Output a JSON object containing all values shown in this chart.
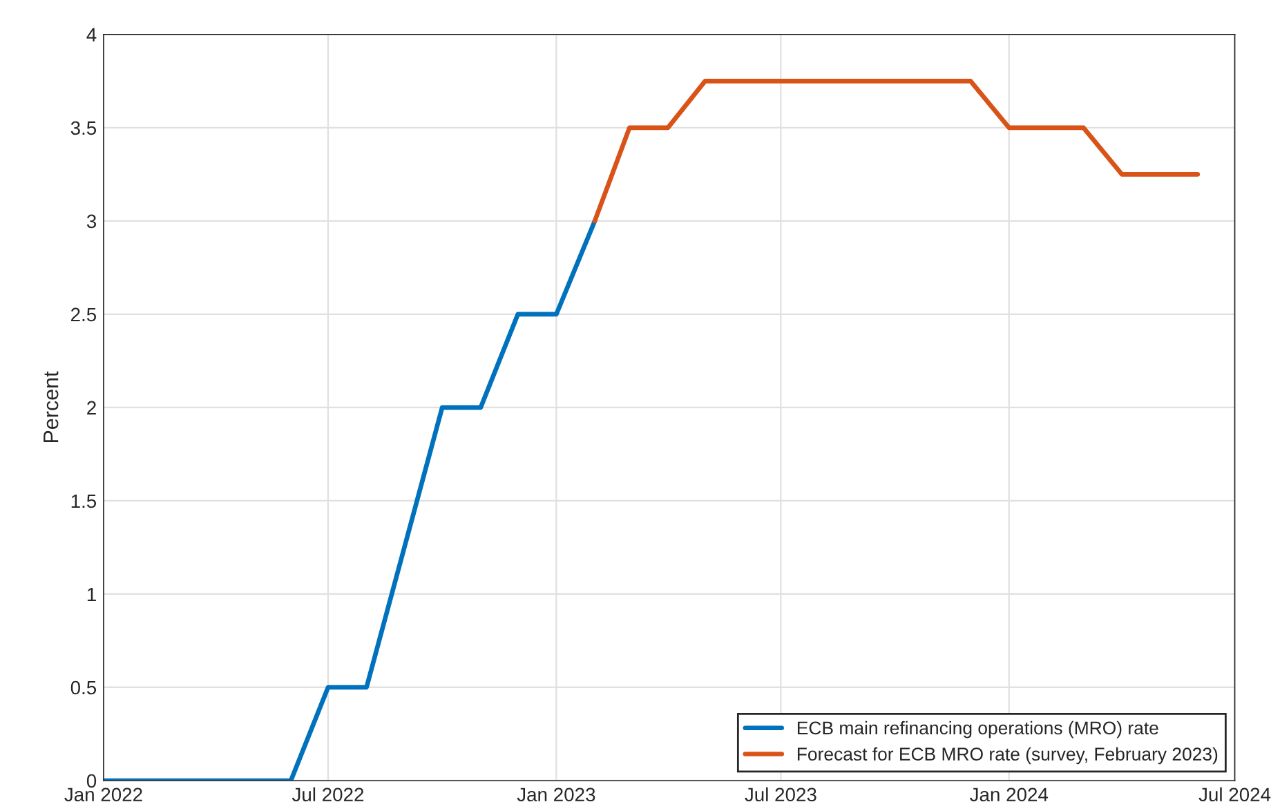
{
  "chart_data": {
    "type": "line",
    "ylabel": "Percent",
    "series": [
      {
        "name": "ECB main refinancing operations (MRO) rate",
        "color": "#0072bd",
        "x": [
          "2022-01-01",
          "2022-06-01",
          "2022-07-01",
          "2022-08-01",
          "2022-10-01",
          "2022-11-01",
          "2022-12-01",
          "2023-01-01",
          "2023-02-01"
        ],
        "values": [
          0,
          0,
          0.5,
          0.5,
          2.0,
          2.0,
          2.5,
          2.5,
          3.0
        ]
      },
      {
        "name": "Forecast for ECB MRO rate (survey, February 2023)",
        "color": "#d95319",
        "x": [
          "2023-02-01",
          "2023-03-01",
          "2023-04-01",
          "2023-05-01",
          "2023-12-01",
          "2024-01-01",
          "2024-03-01",
          "2024-04-01",
          "2024-06-01"
        ],
        "values": [
          3.0,
          3.5,
          3.5,
          3.75,
          3.75,
          3.5,
          3.5,
          3.25,
          3.25
        ]
      }
    ],
    "xlim": [
      "2022-01-01",
      "2024-07-01"
    ],
    "xticks": [
      {
        "value": "2022-01-01",
        "label": "Jan 2022"
      },
      {
        "value": "2022-07-01",
        "label": "Jul 2022"
      },
      {
        "value": "2023-01-01",
        "label": "Jan 2023"
      },
      {
        "value": "2023-07-01",
        "label": "Jul 2023"
      },
      {
        "value": "2024-01-01",
        "label": "Jan 2024"
      },
      {
        "value": "2024-07-01",
        "label": "Jul 2024"
      }
    ],
    "ylim": [
      0,
      4
    ],
    "yticks": [
      0,
      0.5,
      1,
      1.5,
      2,
      2.5,
      3,
      3.5,
      4
    ],
    "grid": true,
    "legend": "bottom right",
    "line_style": "solid",
    "marker": "none"
  }
}
